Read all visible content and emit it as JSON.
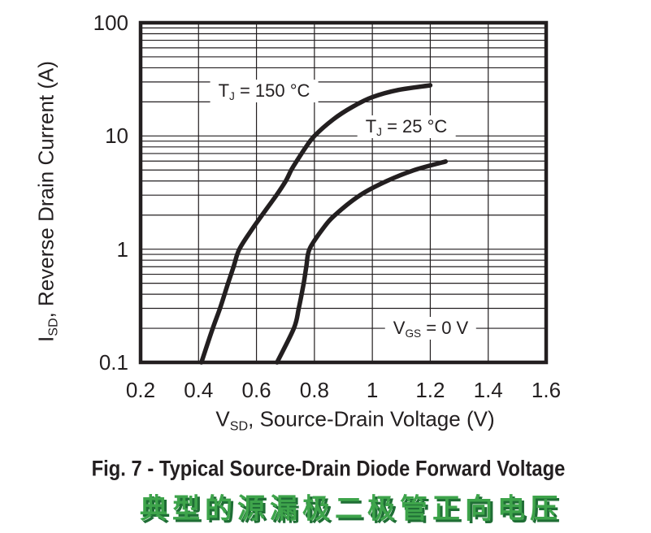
{
  "chart_data": {
    "type": "line",
    "title": "Fig. 7 - Typical Source-Drain Diode Forward Voltage",
    "title_cn": "典型的源漏极二极管正向电压",
    "grid": "on",
    "legend_position": "inline-labels",
    "x_axis": {
      "label": {
        "pre": "V",
        "sub": "SD",
        "post": ", Source-Drain Voltage (V)"
      },
      "scale": "linear",
      "min": 0.2,
      "max": 1.6,
      "tick_values": [
        0.2,
        0.4,
        0.6,
        0.8,
        1.0,
        1.2,
        1.4,
        1.6
      ],
      "tick_labels": [
        "0.2",
        "0.4",
        "0.6",
        "0.8",
        "1",
        "1.2",
        "1.4",
        "1.6"
      ]
    },
    "y_axis": {
      "label": {
        "pre": "I",
        "sub": "SD",
        "post": ", Reverse Drain Current (A)"
      },
      "scale": "log",
      "min": 0.1,
      "max": 100,
      "tick_values": [
        100,
        10,
        1,
        0.1
      ],
      "tick_labels": [
        "100",
        "10",
        "1",
        "0.1"
      ],
      "minor_gridlines": true
    },
    "series": [
      {
        "name": "TJ = 150 °C",
        "label": {
          "pre": "T",
          "sub": "J",
          "post": " = 150 °C"
        },
        "points": [
          [
            0.41,
            0.1
          ],
          [
            0.449,
            0.2
          ],
          [
            0.474,
            0.3
          ],
          [
            0.502,
            0.5
          ],
          [
            0.521,
            0.7
          ],
          [
            0.541,
            1.0
          ],
          [
            0.585,
            1.5
          ],
          [
            0.631,
            2.2
          ],
          [
            0.669,
            3.0
          ],
          [
            0.701,
            4.0
          ],
          [
            0.72,
            5.0
          ],
          [
            0.739,
            6.0
          ],
          [
            0.771,
            8.0
          ],
          [
            0.8,
            10
          ],
          [
            0.865,
            14
          ],
          [
            0.93,
            18
          ],
          [
            1.0,
            22
          ],
          [
            1.09,
            25.5
          ],
          [
            1.2,
            28
          ]
        ]
      },
      {
        "name": "TJ = 25 °C",
        "label": {
          "pre": "T",
          "sub": "J",
          "post": " = 25 °C"
        },
        "points": [
          [
            0.671,
            0.1
          ],
          [
            0.729,
            0.2
          ],
          [
            0.746,
            0.3
          ],
          [
            0.763,
            0.5
          ],
          [
            0.772,
            0.7
          ],
          [
            0.783,
            1.0
          ],
          [
            0.828,
            1.5
          ],
          [
            0.871,
            2.0
          ],
          [
            0.958,
            3.0
          ],
          [
            1.05,
            4.0
          ],
          [
            1.145,
            5.0
          ],
          [
            1.253,
            5.95
          ]
        ]
      }
    ],
    "annotation": {
      "pre": "V",
      "sub": "GS",
      "post": " = 0 V"
    },
    "colors": {
      "ink": "#231f20",
      "caption_green": "#3ea44b",
      "caption_green_shadow": "#1f6e35"
    }
  },
  "captions": {
    "english": "Fig. 7 - Typical Source-Drain Diode Forward Voltage",
    "chinese": "典型的源漏极二极管正向电压"
  }
}
